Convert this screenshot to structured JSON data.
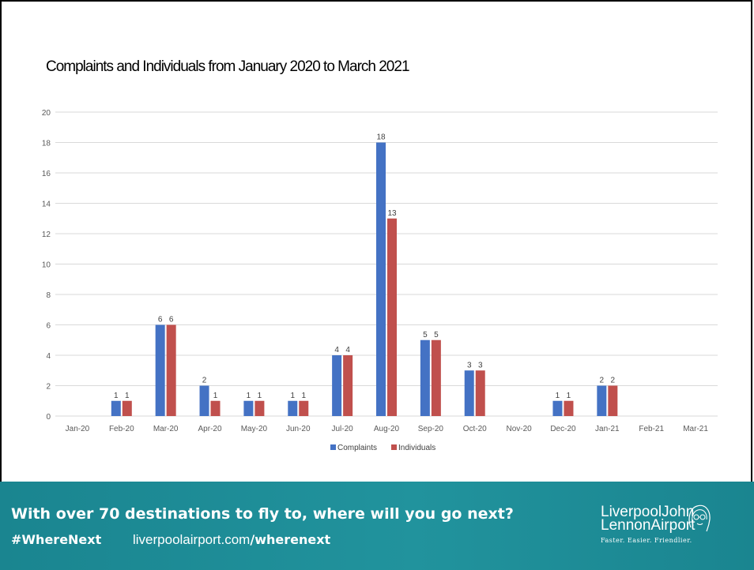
{
  "chart_data": {
    "type": "bar",
    "title": "Complaints and Individuals from January 2020 to March 2021",
    "categories": [
      "Jan-20",
      "Feb-20",
      "Mar-20",
      "Apr-20",
      "May-20",
      "Jun-20",
      "Jul-20",
      "Aug-20",
      "Sep-20",
      "Oct-20",
      "Nov-20",
      "Dec-20",
      "Jan-21",
      "Feb-21",
      "Mar-21"
    ],
    "series": [
      {
        "name": "Complaints",
        "color": "#4472c4",
        "values": [
          0,
          1,
          6,
          2,
          1,
          1,
          4,
          18,
          5,
          3,
          0,
          1,
          2,
          0,
          0
        ]
      },
      {
        "name": "Individuals",
        "color": "#c0504d",
        "values": [
          0,
          1,
          6,
          1,
          1,
          1,
          4,
          13,
          5,
          3,
          0,
          1,
          2,
          0,
          0
        ]
      }
    ],
    "ylim": [
      0,
      20
    ],
    "yticks": [
      0,
      2,
      4,
      6,
      8,
      10,
      12,
      14,
      16,
      18,
      20
    ],
    "grid": true,
    "legend": "bottom",
    "data_labels": true
  },
  "footer": {
    "tagline": "With over 70 destinations to fly to, where will you go next?",
    "hashtag": "#WhereNext",
    "url_plain": "liverpoolairport.com",
    "url_bold": "/wherenext",
    "logo_line1": "LiverpoolJohn",
    "logo_line2": "LennonAirport",
    "logo_tagline": "Faster. Easier. Friendlier."
  }
}
